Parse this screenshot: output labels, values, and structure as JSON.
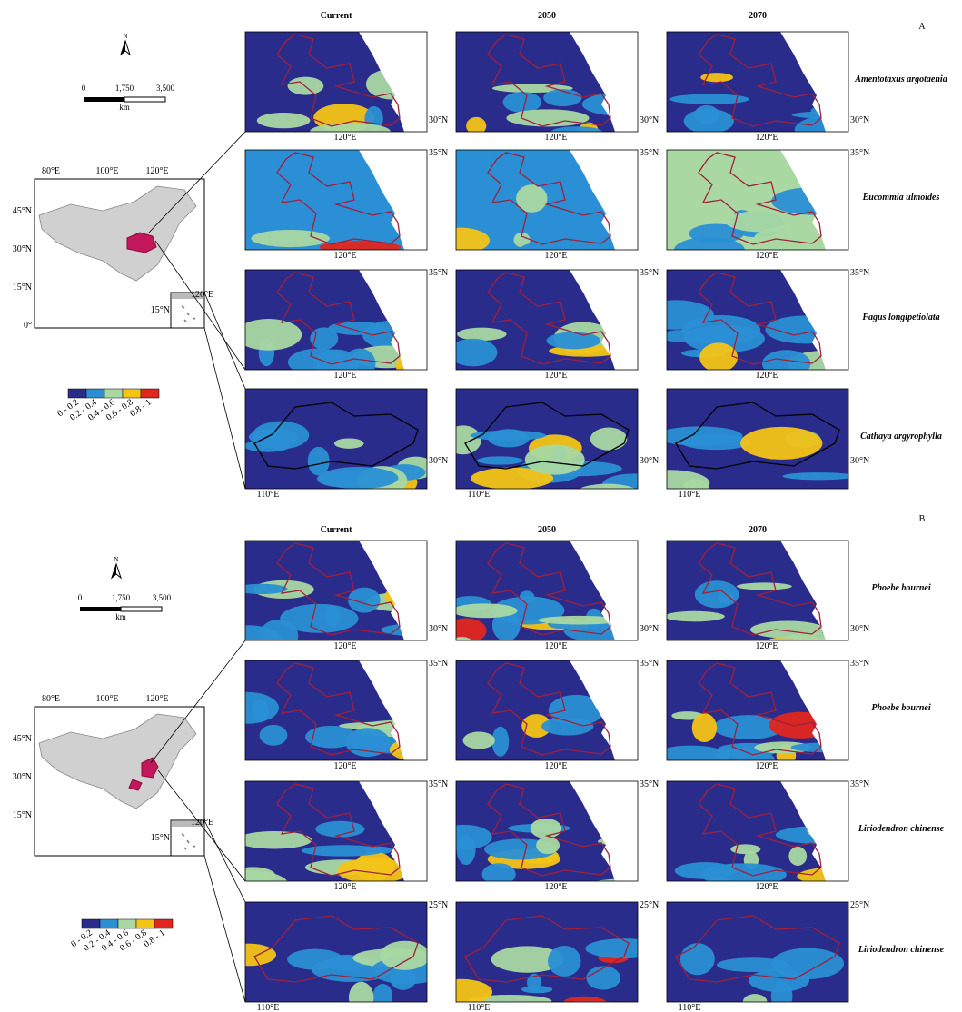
{
  "panels": [
    {
      "label": "A",
      "columns": [
        "Current",
        "2050",
        "2070"
      ],
      "rows": [
        {
          "species": "Amentotaxus argotaenia",
          "x_label": "120°E",
          "y_label": "30°N"
        },
        {
          "species": "Eucommia ulmoides",
          "x_label": "120°E",
          "y_label": "35°N"
        },
        {
          "species": "Fagus longipetiolata",
          "x_label": "120°E",
          "y_label": "35°N"
        },
        {
          "species": "Cathaya argyrophylla",
          "x_label": "110°E",
          "y_label": "30°N"
        }
      ],
      "north": "N",
      "scale_bar": [
        "0",
        "1,750",
        "3,500"
      ],
      "scale_unit": "km",
      "overview": {
        "lon_labels": [
          "80°E",
          "100°E",
          "120°E"
        ],
        "lat_labels": [
          "45°N",
          "30°N",
          "15°N",
          "0°"
        ],
        "inset_lon": "120°E",
        "inset_lat": "15°N"
      },
      "legend": [
        "0 - 0.2",
        "0.2 - 0.4",
        "0.4 - 0.6",
        "0.6 - 0.8",
        "0.8 - 1"
      ]
    },
    {
      "label": "B",
      "columns": [
        "Current",
        "2050",
        "2070"
      ],
      "rows": [
        {
          "species": "Phoebe bournei",
          "x_label": "120°E",
          "y_label": "30°N"
        },
        {
          "species": "Phoebe bournei",
          "x_label": "120°E",
          "y_label": "35°N"
        },
        {
          "species": "Liriodendron chinense",
          "x_label": "120°E",
          "y_label": "35°N"
        },
        {
          "species": "Liriodendron chinense",
          "x_label": "110°E",
          "y_label": "25°N"
        }
      ],
      "north": "N",
      "scale_bar": [
        "0",
        "1,750",
        "3,500"
      ],
      "scale_unit": "km",
      "overview": {
        "lon_labels": [
          "80°E",
          "100°E",
          "120°E"
        ],
        "lat_labels": [
          "45°N",
          "30°N",
          "15°N"
        ],
        "inset_lon": "120°E",
        "inset_lat": "15°N"
      },
      "legend": [
        "0 - 0.2",
        "0.2 - 0.4",
        "0.4 - 0.6",
        "0.6 - 0.8",
        "0.8 - 1"
      ]
    }
  ]
}
